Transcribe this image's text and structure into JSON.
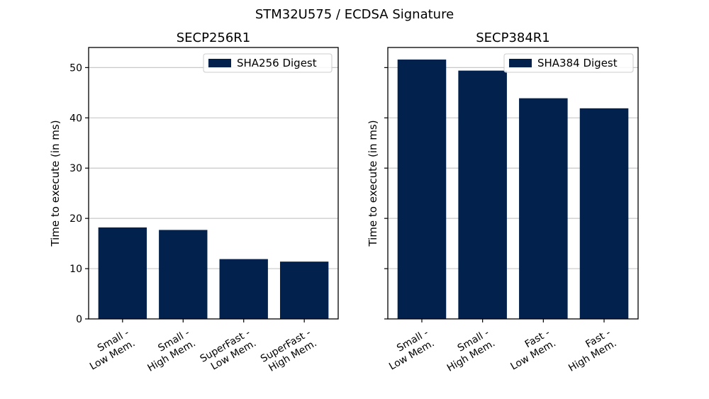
{
  "figure": {
    "suptitle": "STM32U575 / ECDSA Signature"
  },
  "colors": {
    "bar": "#03214d",
    "grid": "#c8c8c8",
    "axis": "#000000"
  },
  "chart_data": [
    {
      "type": "bar",
      "title": "SECP256R1",
      "ylabel": "Time to execute (in ms)",
      "xlabel": "",
      "categories": [
        [
          "Small -",
          "Low Mem."
        ],
        [
          "Small -",
          "High Mem."
        ],
        [
          "SuperFast -",
          "Low Mem."
        ],
        [
          "SuperFast -",
          "High Mem."
        ]
      ],
      "series": [
        {
          "name": "SHA256 Digest",
          "values": [
            18.2,
            17.7,
            11.9,
            11.4
          ]
        }
      ],
      "ylim": [
        0,
        54
      ],
      "yticks": [
        0,
        10,
        20,
        30,
        40,
        50
      ],
      "ytick_labels_visible": true,
      "grid": "y",
      "legend": "top-right"
    },
    {
      "type": "bar",
      "title": "SECP384R1",
      "ylabel": "Time to execute (in ms)",
      "xlabel": "",
      "categories": [
        [
          "Small -",
          "Low Mem."
        ],
        [
          "Small -",
          "High Mem."
        ],
        [
          "Fast -",
          "Low Mem."
        ],
        [
          "Fast -",
          "High Mem."
        ]
      ],
      "series": [
        {
          "name": "SHA384 Digest",
          "values": [
            51.6,
            49.4,
            43.9,
            41.9
          ]
        }
      ],
      "ylim": [
        0,
        54
      ],
      "yticks": [
        0,
        10,
        20,
        30,
        40,
        50
      ],
      "ytick_labels_visible": false,
      "grid": "y",
      "legend": "top-right"
    }
  ]
}
